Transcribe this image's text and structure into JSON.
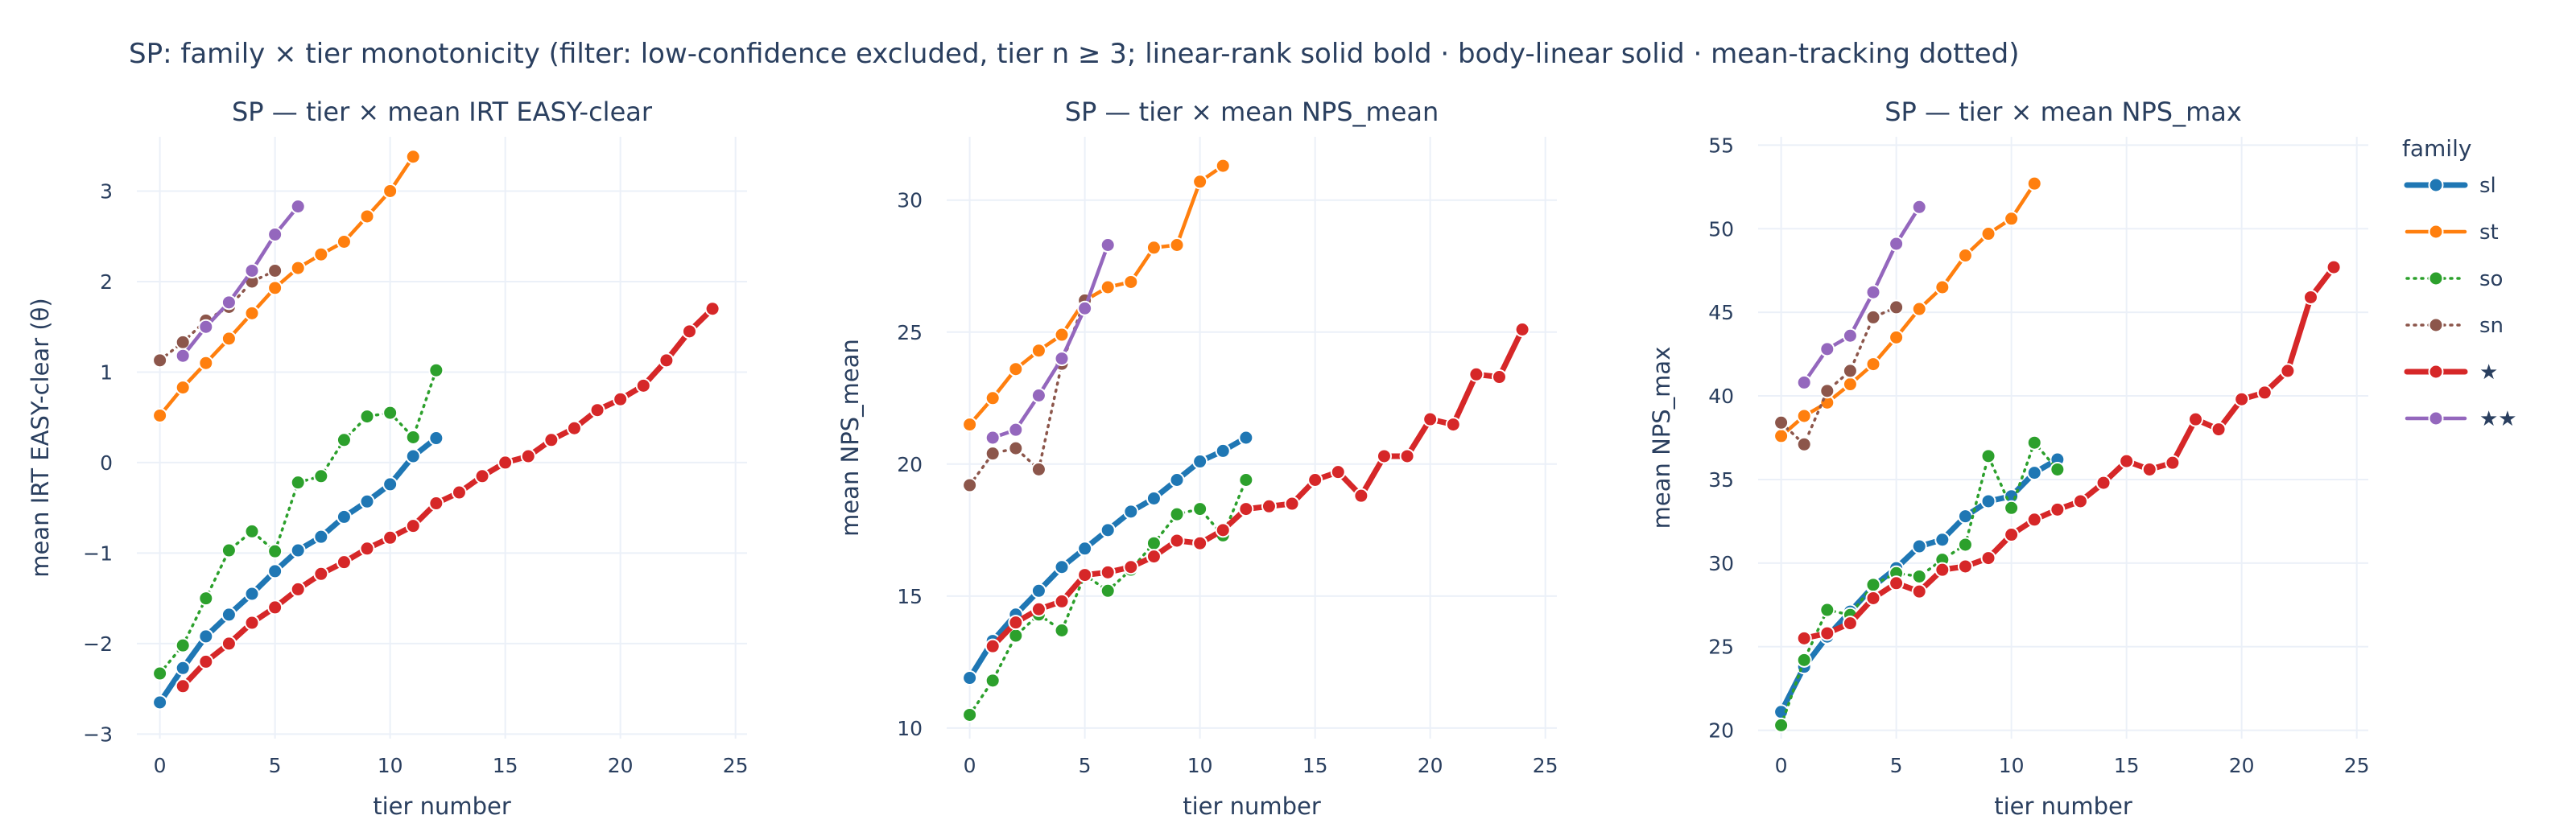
{
  "figure": {
    "title": "SP: family × tier monotonicity (filter: low-confidence excluded, tier n ≥ 3; linear-rank solid bold · body-linear solid · mean-tracking dotted)",
    "legend_title": "family",
    "legend_placement": "right"
  },
  "series_styles": [
    {
      "name": "sl",
      "color": "#1f77b4",
      "line": "bold"
    },
    {
      "name": "st",
      "color": "#ff7f0e",
      "line": "solid"
    },
    {
      "name": "so",
      "color": "#2ca02c",
      "line": "dotted"
    },
    {
      "name": "sn",
      "color": "#8c564b",
      "line": "dotted"
    },
    {
      "name": "★",
      "color": "#d62728",
      "line": "bold"
    },
    {
      "name": "★★",
      "color": "#9467bd",
      "line": "solid"
    }
  ],
  "chart_data": [
    {
      "type": "line",
      "title": "SP — tier × mean IRT EASY-clear",
      "xlabel": "tier number",
      "ylabel": "mean IRT EASY-clear (θ)",
      "xlim": [
        -1,
        25.5
      ],
      "ylim": [
        -3.05,
        3.6
      ],
      "xticks": [
        0,
        5,
        10,
        15,
        20,
        25
      ],
      "yticks": [
        -3,
        -2,
        -1,
        0,
        1,
        2,
        3
      ],
      "ytick_labels": [
        "−3",
        "−2",
        "−1",
        "0",
        "1",
        "2",
        "3"
      ],
      "grid": true,
      "series": [
        {
          "name": "sl",
          "x": [
            0,
            1,
            2,
            3,
            4,
            5,
            6,
            7,
            8,
            9,
            10,
            11,
            12
          ],
          "y": [
            -2.65,
            -2.27,
            -1.92,
            -1.68,
            -1.45,
            -1.2,
            -0.97,
            -0.82,
            -0.6,
            -0.43,
            -0.24,
            0.07,
            0.27
          ]
        },
        {
          "name": "st",
          "x": [
            0,
            1,
            2,
            3,
            4,
            5,
            6,
            7,
            8,
            9,
            10,
            11
          ],
          "y": [
            0.52,
            0.83,
            1.1,
            1.37,
            1.65,
            1.93,
            2.15,
            2.3,
            2.44,
            2.72,
            3.0,
            3.38
          ]
        },
        {
          "name": "so",
          "x": [
            0,
            1,
            2,
            3,
            4,
            5,
            6,
            7,
            8,
            9,
            10,
            11,
            12
          ],
          "y": [
            -2.33,
            -2.02,
            -1.5,
            -0.97,
            -0.76,
            -0.98,
            -0.22,
            -0.15,
            0.25,
            0.51,
            0.55,
            0.28,
            1.02
          ]
        },
        {
          "name": "sn",
          "x": [
            0,
            1,
            2,
            3,
            4,
            5
          ],
          "y": [
            1.13,
            1.33,
            1.57,
            1.72,
            2.0,
            2.12
          ]
        },
        {
          "name": "★",
          "x": [
            1,
            2,
            3,
            4,
            5,
            6,
            7,
            8,
            9,
            10,
            11,
            12,
            13,
            14,
            15,
            16,
            17,
            18,
            19,
            20,
            21,
            22,
            23,
            24
          ],
          "y": [
            -2.47,
            -2.2,
            -2.0,
            -1.77,
            -1.6,
            -1.4,
            -1.23,
            -1.1,
            -0.95,
            -0.83,
            -0.7,
            -0.45,
            -0.33,
            -0.15,
            0.0,
            0.07,
            0.25,
            0.38,
            0.58,
            0.7,
            0.85,
            1.13,
            1.45,
            1.7
          ]
        },
        {
          "name": "★★",
          "x": [
            1,
            2,
            3,
            4,
            5,
            6
          ],
          "y": [
            1.18,
            1.5,
            1.77,
            2.12,
            2.52,
            2.83
          ]
        }
      ]
    },
    {
      "type": "line",
      "title": "SP — tier × mean NPS_mean",
      "xlabel": "tier number",
      "ylabel": "mean NPS_mean",
      "xlim": [
        -1,
        25.5
      ],
      "ylim": [
        9.6,
        32.4
      ],
      "xticks": [
        0,
        5,
        10,
        15,
        20,
        25
      ],
      "yticks": [
        10,
        15,
        20,
        25,
        30
      ],
      "ytick_labels": [
        "10",
        "15",
        "20",
        "25",
        "30"
      ],
      "grid": true,
      "series": [
        {
          "name": "sl",
          "x": [
            0,
            1,
            2,
            3,
            4,
            5,
            6,
            7,
            8,
            9,
            10,
            11,
            12
          ],
          "y": [
            11.9,
            13.3,
            14.3,
            15.2,
            16.1,
            16.8,
            17.5,
            18.2,
            18.7,
            19.4,
            20.1,
            20.5,
            21.0
          ]
        },
        {
          "name": "st",
          "x": [
            0,
            1,
            2,
            3,
            4,
            5,
            6,
            7,
            8,
            9,
            10,
            11
          ],
          "y": [
            21.5,
            22.5,
            23.6,
            24.3,
            24.9,
            26.2,
            26.7,
            26.9,
            28.2,
            28.3,
            30.7,
            31.3
          ]
        },
        {
          "name": "so",
          "x": [
            0,
            1,
            2,
            3,
            4,
            5,
            6,
            7,
            8,
            9,
            10,
            11,
            12
          ],
          "y": [
            10.5,
            11.8,
            13.5,
            14.3,
            13.7,
            15.8,
            15.2,
            16.0,
            17.0,
            18.1,
            18.3,
            17.3,
            19.4
          ]
        },
        {
          "name": "sn",
          "x": [
            0,
            1,
            2,
            3,
            4,
            5
          ],
          "y": [
            19.2,
            20.4,
            20.6,
            19.8,
            23.8,
            26.2
          ]
        },
        {
          "name": "★",
          "x": [
            1,
            2,
            3,
            4,
            5,
            6,
            7,
            8,
            9,
            10,
            11,
            12,
            13,
            14,
            15,
            16,
            17,
            18,
            19,
            20,
            21,
            22,
            23,
            24
          ],
          "y": [
            13.1,
            14.0,
            14.5,
            14.8,
            15.8,
            15.9,
            16.1,
            16.5,
            17.1,
            17.0,
            17.5,
            18.3,
            18.4,
            18.5,
            19.4,
            19.7,
            18.8,
            20.3,
            20.3,
            21.7,
            21.5,
            23.4,
            23.3,
            25.1
          ]
        },
        {
          "name": "★★",
          "x": [
            1,
            2,
            3,
            4,
            5,
            6
          ],
          "y": [
            21.0,
            21.3,
            22.6,
            24.0,
            25.9,
            28.3
          ]
        }
      ]
    },
    {
      "type": "line",
      "title": "SP — tier × mean NPS_max",
      "xlabel": "tier number",
      "ylabel": "mean NPS_max",
      "xlim": [
        -1,
        25.5
      ],
      "ylim": [
        19.5,
        55.5
      ],
      "xticks": [
        0,
        5,
        10,
        15,
        20,
        25
      ],
      "yticks": [
        20,
        25,
        30,
        35,
        40,
        45,
        50,
        55
      ],
      "ytick_labels": [
        "20",
        "25",
        "30",
        "35",
        "40",
        "45",
        "50",
        "55"
      ],
      "grid": true,
      "series": [
        {
          "name": "sl",
          "x": [
            0,
            1,
            2,
            3,
            4,
            5,
            6,
            7,
            8,
            9,
            10,
            11,
            12
          ],
          "y": [
            21.1,
            23.8,
            25.6,
            27.1,
            28.6,
            29.7,
            31.0,
            31.4,
            32.8,
            33.7,
            34.0,
            35.4,
            36.2
          ]
        },
        {
          "name": "st",
          "x": [
            0,
            1,
            2,
            3,
            4,
            5,
            6,
            7,
            8,
            9,
            10,
            11
          ],
          "y": [
            37.6,
            38.8,
            39.6,
            40.7,
            41.9,
            43.5,
            45.2,
            46.5,
            48.4,
            49.7,
            50.6,
            52.7
          ]
        },
        {
          "name": "so",
          "x": [
            0,
            1,
            2,
            3,
            4,
            5,
            6,
            7,
            8,
            9,
            10,
            11,
            12
          ],
          "y": [
            20.3,
            24.2,
            27.2,
            26.9,
            28.7,
            29.4,
            29.2,
            30.2,
            31.1,
            36.4,
            33.3,
            37.2,
            35.6
          ]
        },
        {
          "name": "sn",
          "x": [
            0,
            1,
            2,
            3,
            4,
            5
          ],
          "y": [
            38.4,
            37.1,
            40.3,
            41.5,
            44.7,
            45.3
          ]
        },
        {
          "name": "★",
          "x": [
            1,
            2,
            3,
            4,
            5,
            6,
            7,
            8,
            9,
            10,
            11,
            12,
            13,
            14,
            15,
            16,
            17,
            18,
            19,
            20,
            21,
            22,
            23,
            24
          ],
          "y": [
            25.5,
            25.8,
            26.4,
            27.9,
            28.8,
            28.3,
            29.6,
            29.8,
            30.3,
            31.7,
            32.6,
            33.2,
            33.7,
            34.8,
            36.1,
            35.6,
            36.0,
            38.6,
            38.0,
            39.8,
            40.2,
            41.5,
            45.9,
            47.7
          ]
        },
        {
          "name": "★★",
          "x": [
            1,
            2,
            3,
            4,
            5,
            6
          ],
          "y": [
            40.8,
            42.8,
            43.6,
            46.2,
            49.1,
            51.3
          ]
        }
      ]
    }
  ]
}
